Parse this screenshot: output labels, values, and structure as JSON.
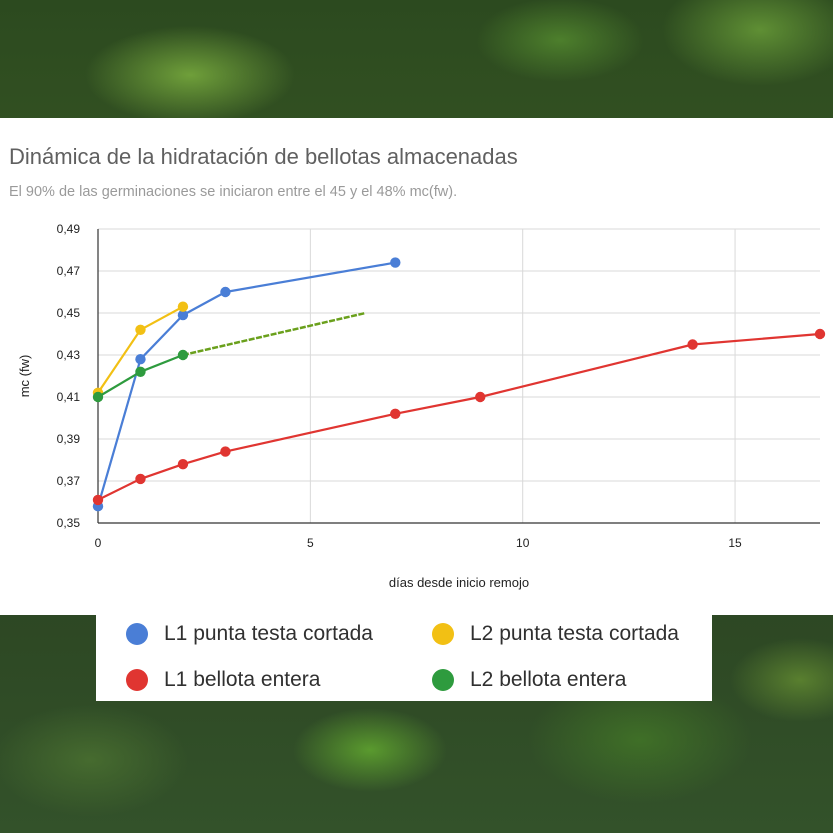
{
  "chart_data": {
    "type": "line",
    "title": "Dinámica de la hidratación de bellotas almacenadas",
    "subtitle": "El 90% de las germinaciones se iniciaron entre el 45 y el 48% mc(fw).",
    "xlabel": "días desde inicio remojo",
    "ylabel": "mc (fw)",
    "xlim": [
      0,
      17
    ],
    "ylim": [
      0.35,
      0.49
    ],
    "x_ticks": [
      0,
      5,
      10,
      15
    ],
    "x_tick_labels": [
      "0",
      "5",
      "10",
      "15"
    ],
    "y_ticks": [
      0.35,
      0.37,
      0.39,
      0.41,
      0.43,
      0.45,
      0.47,
      0.49
    ],
    "y_tick_labels": [
      "0,35",
      "0,37",
      "0,39",
      "0,41",
      "0,43",
      "0,45",
      "0,47",
      "0,49"
    ],
    "grid": true,
    "legend_position": "bottom",
    "series": [
      {
        "name": "L1 punta testa cortada",
        "color": "#4a7ed6",
        "points": [
          [
            0,
            0.358
          ],
          [
            1,
            0.428
          ],
          [
            2,
            0.449
          ],
          [
            3,
            0.46
          ],
          [
            7,
            0.474
          ]
        ]
      },
      {
        "name": "L2 punta testa cortada",
        "color": "#f2c014",
        "points": [
          [
            0,
            0.412
          ],
          [
            1,
            0.442
          ],
          [
            2,
            0.453
          ]
        ]
      },
      {
        "name": "L1 bellota entera",
        "color": "#e03531",
        "points": [
          [
            0,
            0.361
          ],
          [
            1,
            0.371
          ],
          [
            2,
            0.378
          ],
          [
            3,
            0.384
          ],
          [
            7,
            0.402
          ],
          [
            9,
            0.41
          ],
          [
            14,
            0.435
          ],
          [
            17,
            0.44
          ]
        ]
      },
      {
        "name": "L2 bellota entera",
        "color": "#2e9b3e",
        "points": [
          [
            0,
            0.41
          ],
          [
            1,
            0.422
          ],
          [
            2,
            0.43
          ]
        ],
        "trend": {
          "color": "#6aa01c",
          "points": [
            [
              2,
              0.43
            ],
            [
              6.3,
              0.45
            ]
          ]
        }
      }
    ]
  }
}
